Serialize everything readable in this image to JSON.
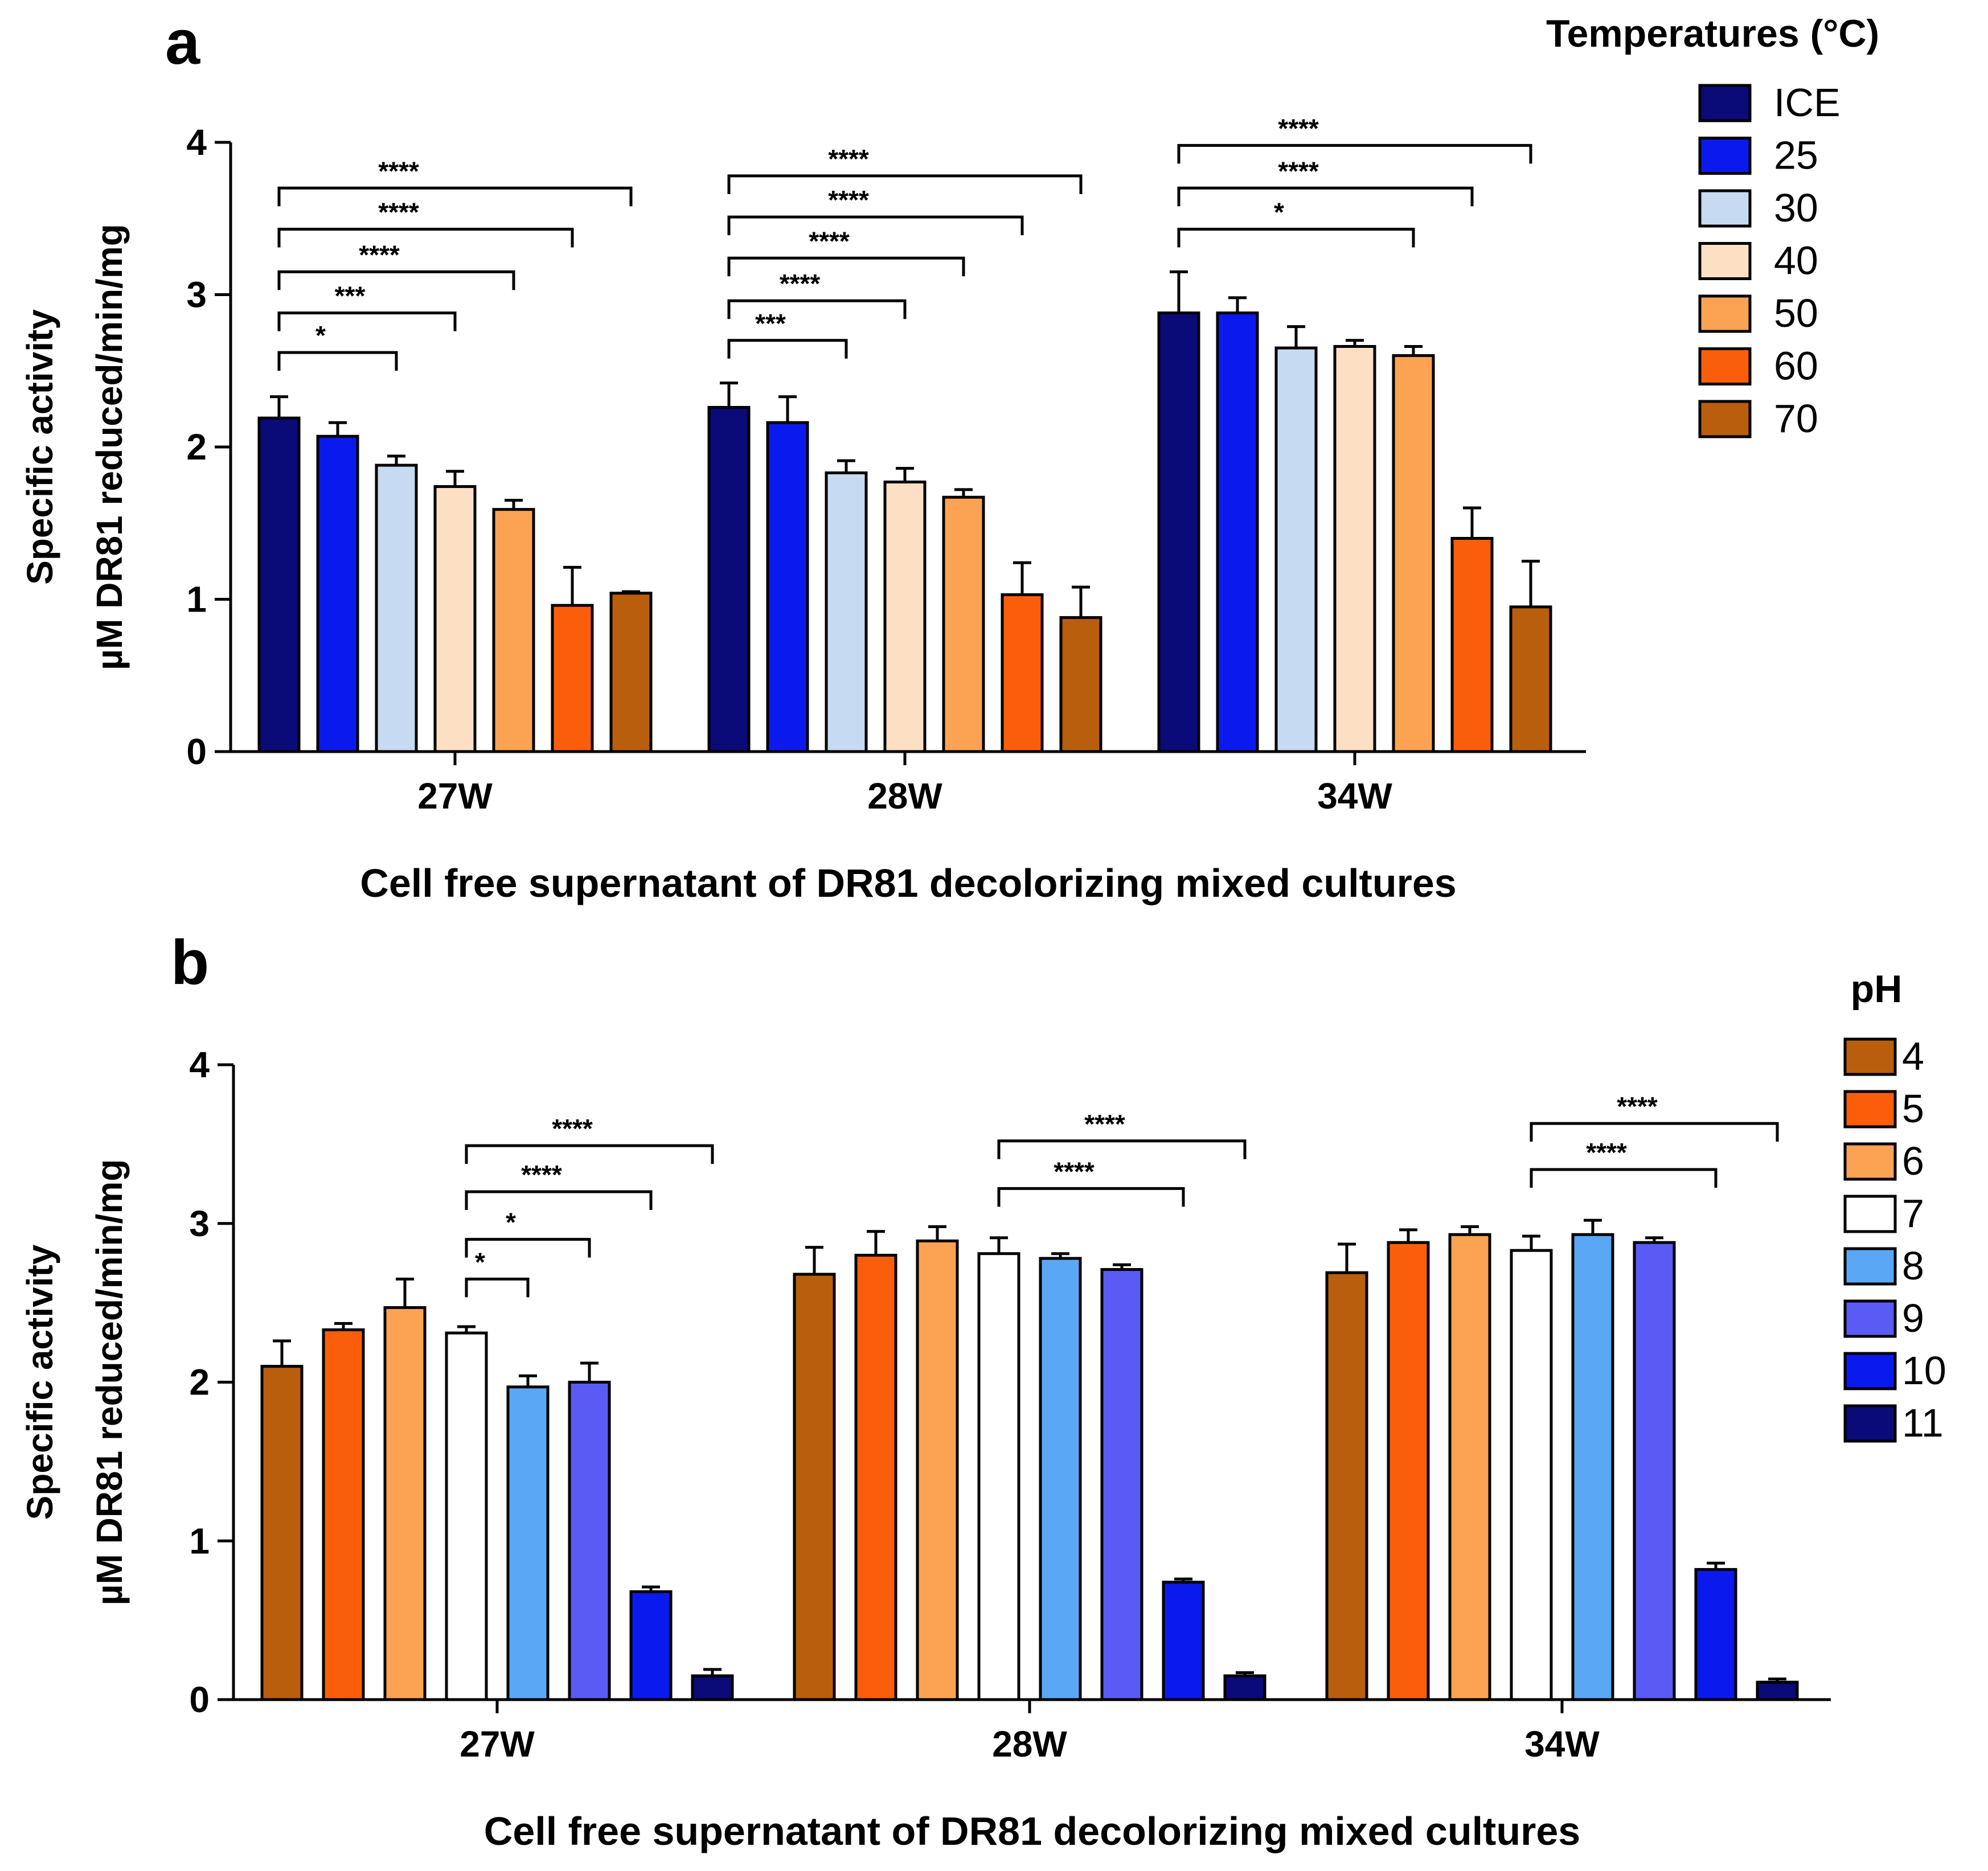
{
  "chart_data": [
    {
      "type": "bar",
      "panel": "a",
      "title": "",
      "xlabel": "Cell free supernatant of DR81 decolorizing mixed cultures",
      "ylabel_line1": "Specific activity",
      "ylabel_line2": "µM DR81 reduced/min/mg",
      "ylim": [
        0,
        4
      ],
      "yticks": [
        "0",
        "1",
        "2",
        "3",
        "4"
      ],
      "categories": [
        "27W",
        "28W",
        "34W"
      ],
      "legend_title": "Temperatures (°C)",
      "legend_position": "top-right",
      "series": [
        {
          "name": "ICE",
          "color": "#0a0a78",
          "values": [
            2.19,
            2.26,
            2.88
          ],
          "errors": [
            0.14,
            0.16,
            0.27
          ]
        },
        {
          "name": "25",
          "color": "#0a1aee",
          "values": [
            2.07,
            2.16,
            2.88
          ],
          "errors": [
            0.09,
            0.17,
            0.1
          ]
        },
        {
          "name": "30",
          "color": "#c6daf2",
          "values": [
            1.88,
            1.83,
            2.65
          ],
          "errors": [
            0.06,
            0.08,
            0.14
          ]
        },
        {
          "name": "40",
          "color": "#fde0c4",
          "values": [
            1.74,
            1.77,
            2.66
          ],
          "errors": [
            0.1,
            0.09,
            0.04
          ]
        },
        {
          "name": "50",
          "color": "#fba352",
          "values": [
            1.59,
            1.67,
            2.6
          ],
          "errors": [
            0.06,
            0.05,
            0.06
          ]
        },
        {
          "name": "60",
          "color": "#fa5e0a",
          "values": [
            0.96,
            1.03,
            1.4
          ],
          "errors": [
            0.25,
            0.21,
            0.2
          ]
        },
        {
          "name": "70",
          "color": "#b85e0d",
          "values": [
            1.04,
            0.88,
            0.95
          ],
          "errors": [
            0.01,
            0.2,
            0.3
          ]
        }
      ],
      "significance": [
        {
          "group": 0,
          "from": 0,
          "to": 2,
          "label": "*",
          "y": 2.62
        },
        {
          "group": 0,
          "from": 0,
          "to": 3,
          "label": "***",
          "y": 2.88
        },
        {
          "group": 0,
          "from": 0,
          "to": 4,
          "label": "****",
          "y": 3.15
        },
        {
          "group": 0,
          "from": 0,
          "to": 5,
          "label": "****",
          "y": 3.43
        },
        {
          "group": 0,
          "from": 0,
          "to": 6,
          "label": "****",
          "y": 3.7
        },
        {
          "group": 1,
          "from": 0,
          "to": 2,
          "label": "***",
          "y": 2.7
        },
        {
          "group": 1,
          "from": 0,
          "to": 3,
          "label": "****",
          "y": 2.96
        },
        {
          "group": 1,
          "from": 0,
          "to": 4,
          "label": "****",
          "y": 3.24
        },
        {
          "group": 1,
          "from": 0,
          "to": 5,
          "label": "****",
          "y": 3.51
        },
        {
          "group": 1,
          "from": 0,
          "to": 6,
          "label": "****",
          "y": 3.78
        },
        {
          "group": 2,
          "from": 0,
          "to": 4,
          "label": "*",
          "y": 3.43
        },
        {
          "group": 2,
          "from": 0,
          "to": 5,
          "label": "****",
          "y": 3.7
        },
        {
          "group": 2,
          "from": 0,
          "to": 6,
          "label": "****",
          "y": 3.98
        }
      ]
    },
    {
      "type": "bar",
      "panel": "b",
      "title": "",
      "xlabel": "Cell free supernatant of DR81 decolorizing mixed cultures",
      "ylabel_line1": "Specific activity",
      "ylabel_line2": "µM DR81 reduced/min/mg",
      "ylim": [
        0,
        4
      ],
      "yticks": [
        "0",
        "1",
        "2",
        "3",
        "4"
      ],
      "categories": [
        "27W",
        "28W",
        "34W"
      ],
      "legend_title": "pH",
      "legend_position": "right",
      "series": [
        {
          "name": "4",
          "color": "#b85e0d",
          "values": [
            2.1,
            2.68,
            2.69
          ],
          "errors": [
            0.16,
            0.17,
            0.18
          ]
        },
        {
          "name": "5",
          "color": "#fa5e0a",
          "values": [
            2.33,
            2.8,
            2.88
          ],
          "errors": [
            0.04,
            0.15,
            0.08
          ]
        },
        {
          "name": "6",
          "color": "#fba352",
          "values": [
            2.47,
            2.89,
            2.93
          ],
          "errors": [
            0.18,
            0.09,
            0.05
          ]
        },
        {
          "name": "7",
          "color": "#ffffff",
          "values": [
            2.31,
            2.81,
            2.83
          ],
          "errors": [
            0.04,
            0.1,
            0.09
          ]
        },
        {
          "name": "8",
          "color": "#5aa8f5",
          "values": [
            1.97,
            2.78,
            2.93
          ],
          "errors": [
            0.07,
            0.03,
            0.09
          ]
        },
        {
          "name": "9",
          "color": "#5a5af5",
          "values": [
            2.0,
            2.71,
            2.88
          ],
          "errors": [
            0.12,
            0.03,
            0.03
          ]
        },
        {
          "name": "10",
          "color": "#0a1aee",
          "values": [
            0.68,
            0.74,
            0.82
          ],
          "errors": [
            0.03,
            0.02,
            0.04
          ]
        },
        {
          "name": "11",
          "color": "#0a0a78",
          "values": [
            0.15,
            0.15,
            0.11
          ],
          "errors": [
            0.04,
            0.02,
            0.02
          ]
        }
      ],
      "significance": [
        {
          "group": 0,
          "from": 3,
          "to": 4,
          "label": "*",
          "y": 2.65
        },
        {
          "group": 0,
          "from": 3,
          "to": 5,
          "label": "*",
          "y": 2.9
        },
        {
          "group": 0,
          "from": 3,
          "to": 6,
          "label": "****",
          "y": 3.2
        },
        {
          "group": 0,
          "from": 3,
          "to": 7,
          "label": "****",
          "y": 3.49
        },
        {
          "group": 1,
          "from": 3,
          "to": 6,
          "label": "****",
          "y": 3.22
        },
        {
          "group": 1,
          "from": 3,
          "to": 7,
          "label": "****",
          "y": 3.52
        },
        {
          "group": 2,
          "from": 3,
          "to": 6,
          "label": "****",
          "y": 3.34
        },
        {
          "group": 2,
          "from": 3,
          "to": 7,
          "label": "****",
          "y": 3.63
        }
      ]
    }
  ]
}
